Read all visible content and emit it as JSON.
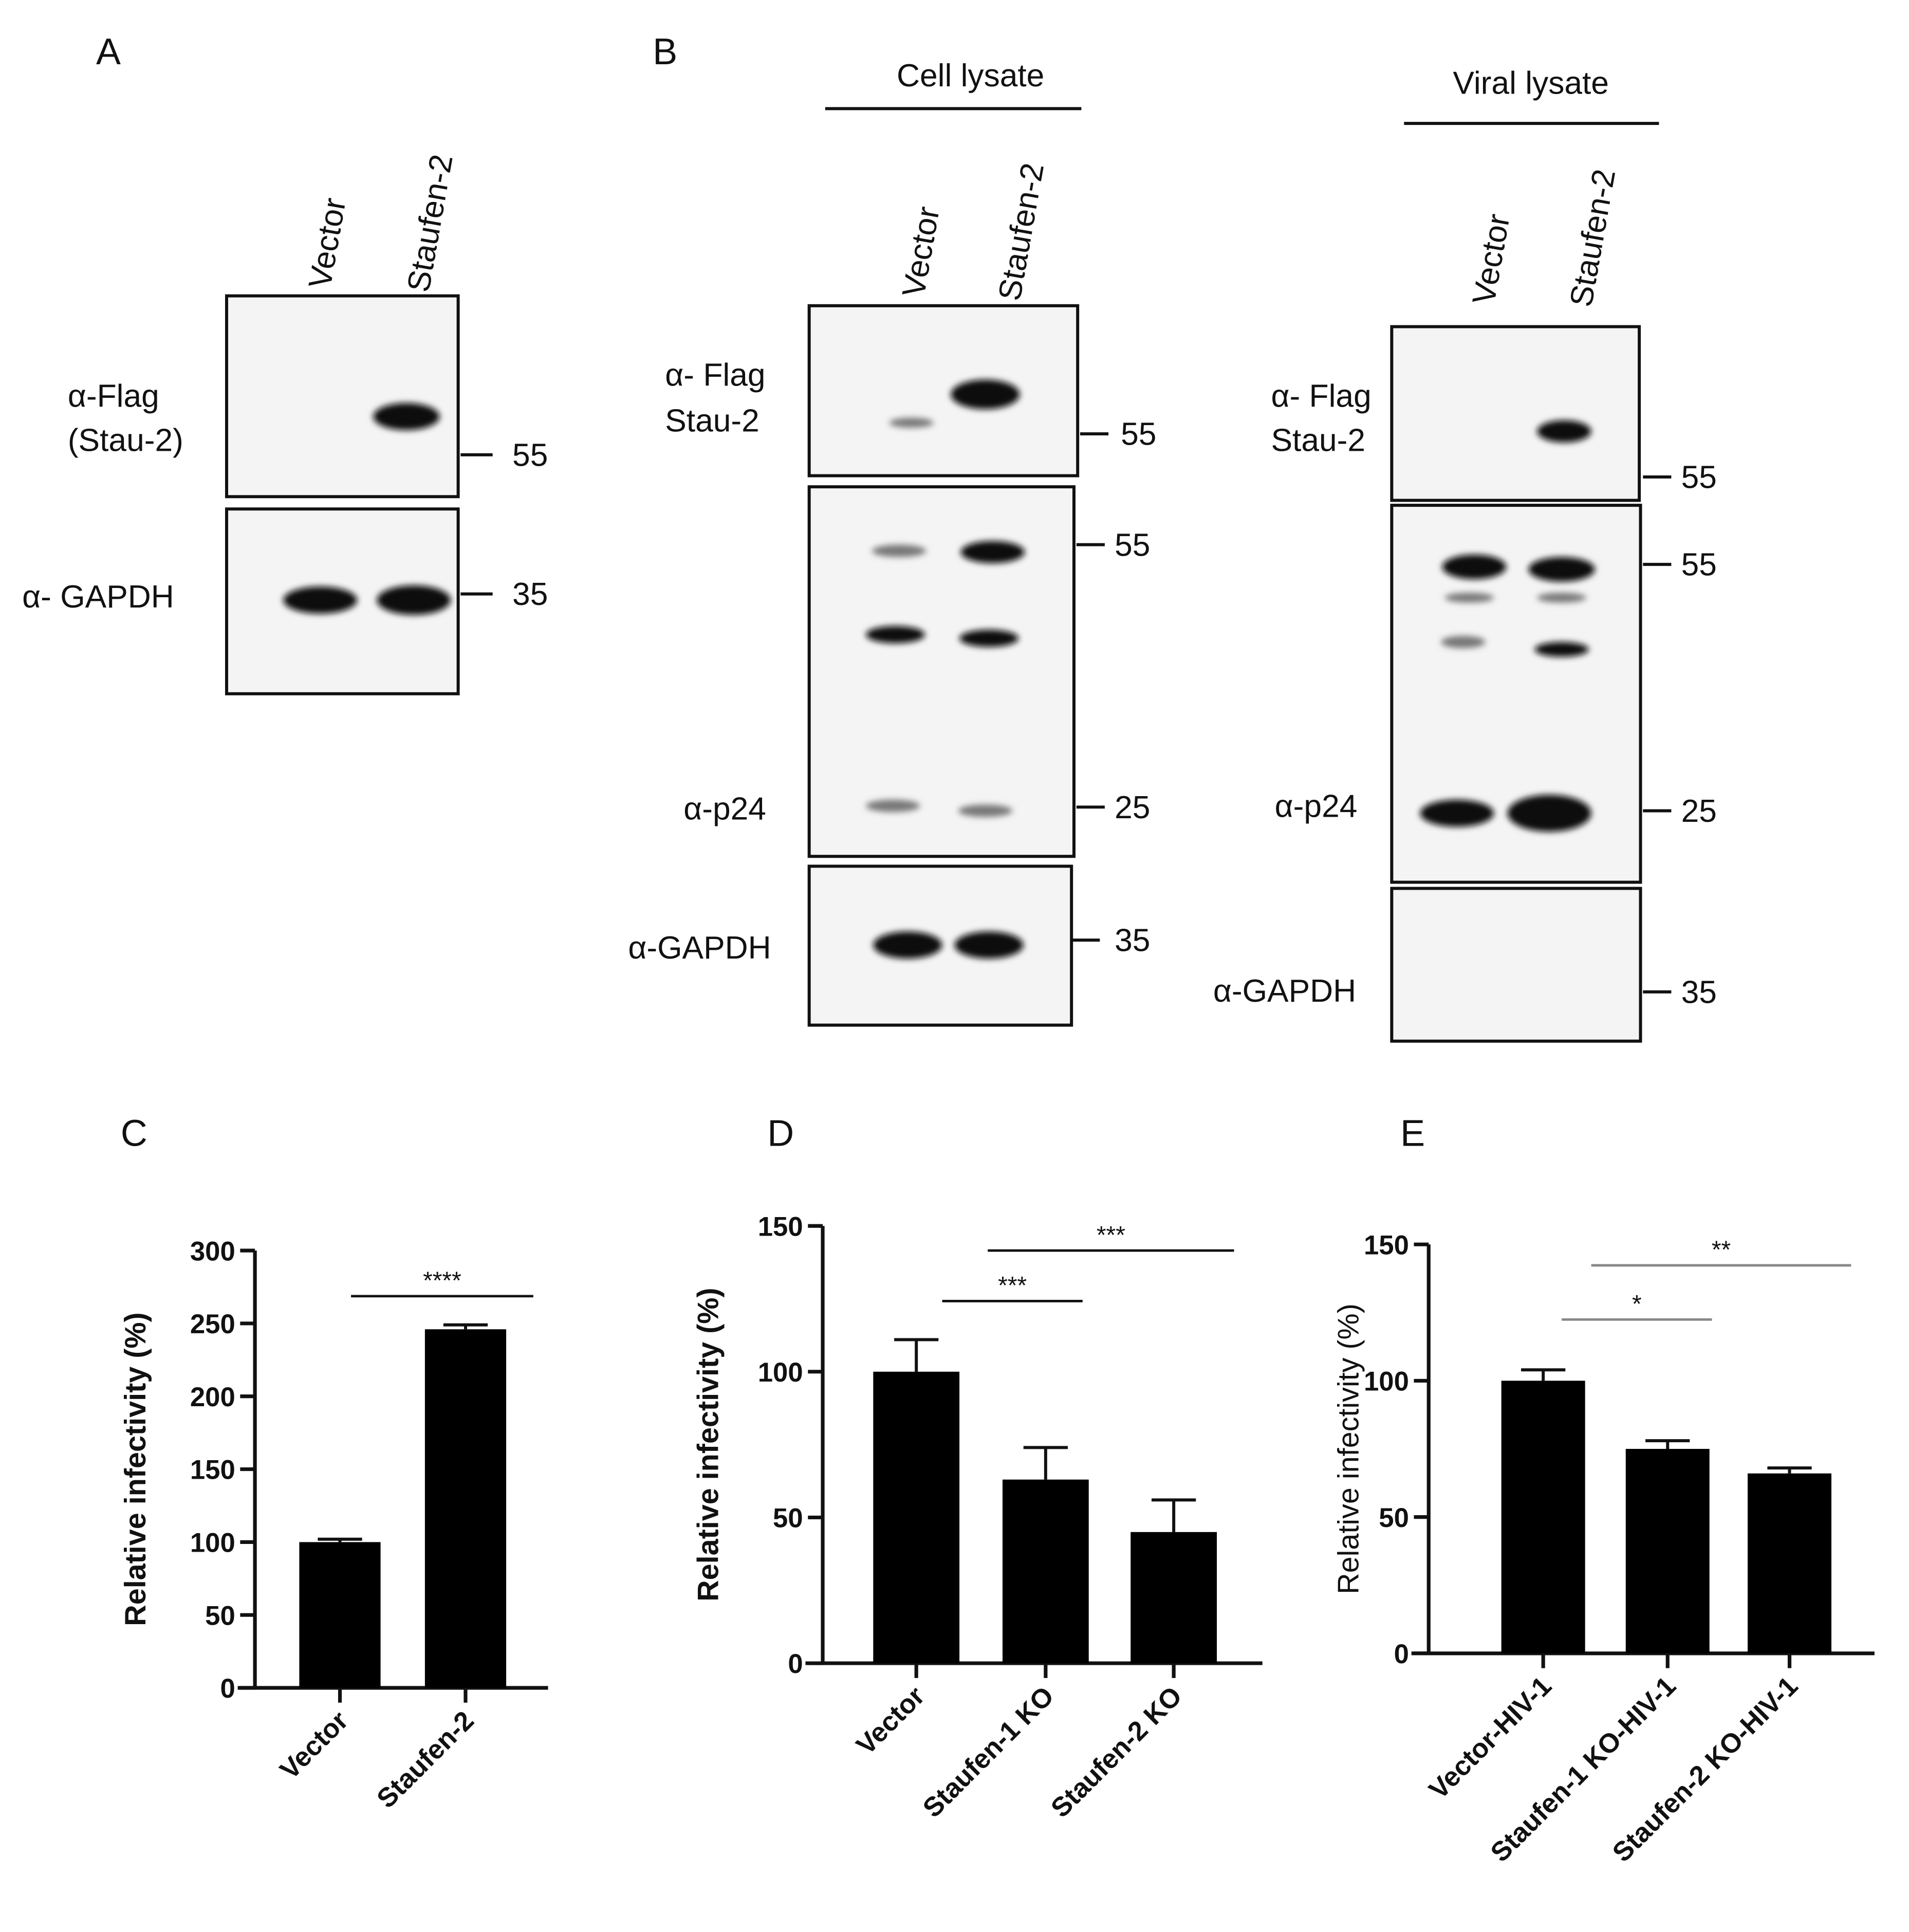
{
  "blots": {
    "panel_a": {
      "label": "A",
      "lanes": [
        "Vector",
        "Staufen-2"
      ],
      "antibodies": [
        [
          "α-Flag",
          "(Stau-2)"
        ],
        [
          "α- GAPDH"
        ]
      ],
      "markers": [
        55,
        35
      ]
    },
    "panel_b": {
      "label": "B",
      "cell": {
        "title": "Cell lysate",
        "lanes": [
          "Vector",
          "Staufen-2"
        ],
        "antibodies": [
          [
            "α- Flag",
            "Stau-2"
          ],
          [
            "α-p24"
          ],
          [
            "α-GAPDH"
          ]
        ],
        "markers": [
          55,
          55,
          25,
          35
        ]
      },
      "viral": {
        "title": "Viral lysate",
        "lanes": [
          "Vector",
          "Staufen-2"
        ],
        "antibodies": [
          [
            "α- Flag",
            "Stau-2"
          ],
          [
            "α-p24"
          ],
          [
            "α-GAPDH"
          ]
        ],
        "markers": [
          55,
          55,
          25,
          35
        ]
      }
    }
  },
  "chart_data": [
    {
      "type": "bar",
      "panel_label": "C",
      "ylabel": "Relative infectivity (%)",
      "categories": [
        "Vector",
        "Staufen-2"
      ],
      "values": [
        100,
        246
      ],
      "errors": [
        2,
        3
      ],
      "color": "#000000",
      "ylim": [
        0,
        300
      ],
      "yticks": [
        0,
        50,
        100,
        150,
        200,
        250,
        300
      ],
      "annotations": [
        "****"
      ]
    },
    {
      "type": "bar",
      "panel_label": "D",
      "ylabel": "Relative infectivity (%)",
      "categories": [
        "Vector",
        "Staufen-1 KO",
        "Staufen-2 KO"
      ],
      "values": [
        100,
        63,
        45
      ],
      "errors": [
        11,
        11,
        11
      ],
      "color": "#000000",
      "ylim": [
        0,
        150
      ],
      "yticks": [
        0,
        50,
        100,
        150
      ],
      "annotations": [
        "***",
        "***"
      ]
    },
    {
      "type": "bar",
      "panel_label": "E",
      "ylabel": "Relative infectivity (%)",
      "categories": [
        "Vector-HIV-1",
        "Staufen-1 KO-HIV-1",
        "Staufen-2 KO-HIV-1"
      ],
      "values": [
        100,
        75,
        66
      ],
      "errors": [
        4,
        3,
        2
      ],
      "color": "#000000",
      "ylim": [
        0,
        150
      ],
      "yticks": [
        0,
        50,
        100,
        150
      ],
      "annotations": [
        "*",
        "**"
      ]
    }
  ]
}
